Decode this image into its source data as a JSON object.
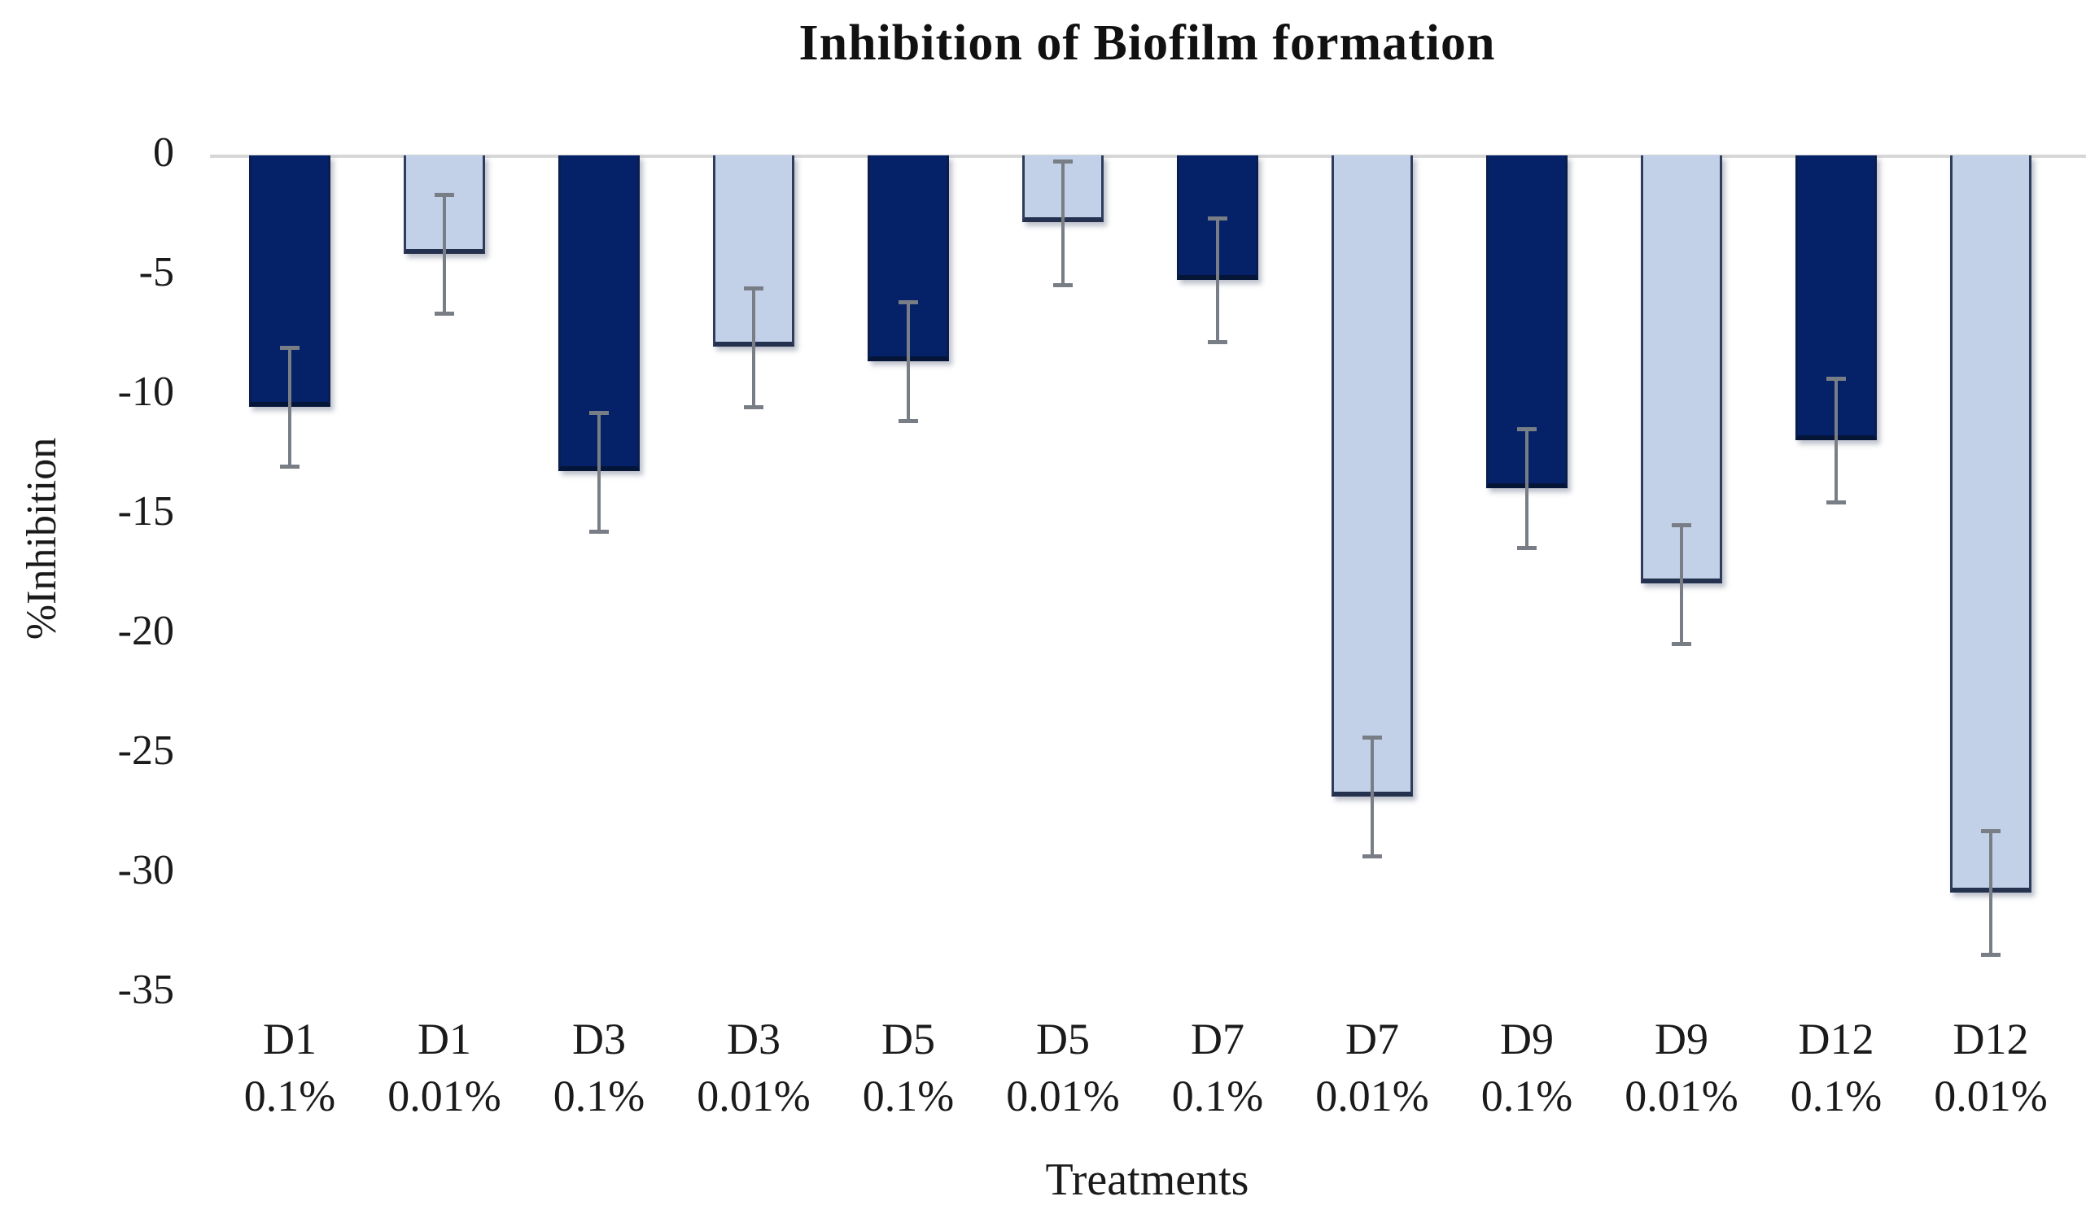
{
  "chart_data": {
    "type": "bar",
    "title": "Inhibition of Biofilm formation",
    "xlabel": "Treatments",
    "ylabel": "%Inhibition",
    "ylim": [
      -35,
      0
    ],
    "yticks": [
      0,
      -5,
      -10,
      -15,
      -20,
      -25,
      -30,
      -35
    ],
    "ytick_labels": [
      "0",
      "-5",
      "-10",
      "-15",
      "-20",
      "-25",
      "-30",
      "-35"
    ],
    "grid": false,
    "legend": "none",
    "error_bars": true,
    "colors": {
      "0.1%": "#052268",
      "0.01%": "#c2d1e8"
    },
    "error_bar_color": "#797e86",
    "zero_line_color": "#d7d7d7",
    "categories": [
      "D1 0.1%",
      "D1 0.01%",
      "D3 0.1%",
      "D3 0.01%",
      "D5 0.1%",
      "D5 0.01%",
      "D7 0.1%",
      "D7 0.01%",
      "D9 0.1%",
      "D9 0.01%",
      "D12 0.1%",
      "D12 0.01%"
    ],
    "values": [
      -10.5,
      -4.1,
      -13.2,
      -8.0,
      -8.6,
      -2.8,
      -5.2,
      -26.8,
      -13.9,
      -17.9,
      -11.9,
      -30.8
    ],
    "errors": [
      2.5,
      2.5,
      2.5,
      2.5,
      2.5,
      2.6,
      2.6,
      2.5,
      2.5,
      2.5,
      2.6,
      2.6
    ],
    "bars": [
      {
        "treatment": "D1",
        "concentration": "0.1%",
        "value": -10.5,
        "error": 2.5,
        "series": "dark"
      },
      {
        "treatment": "D1",
        "concentration": "0.01%",
        "value": -4.1,
        "error": 2.5,
        "series": "light"
      },
      {
        "treatment": "D3",
        "concentration": "0.1%",
        "value": -13.2,
        "error": 2.5,
        "series": "dark"
      },
      {
        "treatment": "D3",
        "concentration": "0.01%",
        "value": -8.0,
        "error": 2.5,
        "series": "light"
      },
      {
        "treatment": "D5",
        "concentration": "0.1%",
        "value": -8.6,
        "error": 2.5,
        "series": "dark"
      },
      {
        "treatment": "D5",
        "concentration": "0.01%",
        "value": -2.8,
        "error": 2.6,
        "series": "light"
      },
      {
        "treatment": "D7",
        "concentration": "0.1%",
        "value": -5.2,
        "error": 2.6,
        "series": "dark"
      },
      {
        "treatment": "D7",
        "concentration": "0.01%",
        "value": -26.8,
        "error": 2.5,
        "series": "light"
      },
      {
        "treatment": "D9",
        "concentration": "0.1%",
        "value": -13.9,
        "error": 2.5,
        "series": "dark"
      },
      {
        "treatment": "D9",
        "concentration": "0.01%",
        "value": -17.9,
        "error": 2.5,
        "series": "light"
      },
      {
        "treatment": "D12",
        "concentration": "0.1%",
        "value": -11.9,
        "error": 2.6,
        "series": "dark"
      },
      {
        "treatment": "D12",
        "concentration": "0.01%",
        "value": -30.8,
        "error": 2.6,
        "series": "light"
      }
    ]
  }
}
